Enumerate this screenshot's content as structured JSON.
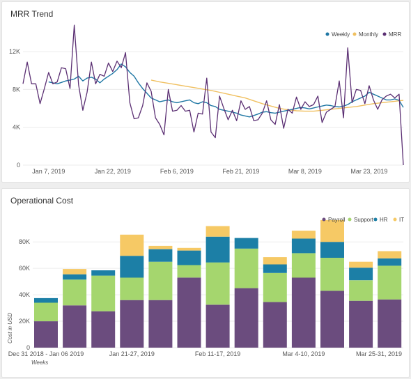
{
  "chart_data": [
    {
      "type": "line",
      "title": "MRR Trend",
      "x_tick_labels": [
        "Jan 7, 2019",
        "Jan 22, 2019",
        "Feb 6, 2019",
        "Feb 21, 2019",
        "Mar 8, 2019",
        "Mar 23, 2019"
      ],
      "y_tick_labels": [
        "0",
        "4K",
        "8K",
        "12K"
      ],
      "ylim": [
        0,
        14000
      ],
      "grid": true,
      "legend_position": "top-right",
      "x_start": "2019-01-01",
      "series": [
        {
          "name": "Weekly",
          "color": "#1f77a4",
          "x": [
            "2019-01-07",
            "2019-01-08",
            "2019-01-09",
            "2019-01-10",
            "2019-01-11",
            "2019-01-12",
            "2019-01-13",
            "2019-01-14",
            "2019-01-15",
            "2019-01-16",
            "2019-01-17",
            "2019-01-18",
            "2019-01-19",
            "2019-01-20",
            "2019-01-21",
            "2019-01-22",
            "2019-01-23",
            "2019-01-24",
            "2019-01-25",
            "2019-01-26",
            "2019-01-27",
            "2019-01-28",
            "2019-01-29",
            "2019-01-30",
            "2019-01-31",
            "2019-02-01",
            "2019-02-02",
            "2019-02-03",
            "2019-02-04",
            "2019-02-05",
            "2019-02-06",
            "2019-02-07",
            "2019-02-08",
            "2019-02-09",
            "2019-02-10",
            "2019-02-11",
            "2019-02-12",
            "2019-02-13",
            "2019-02-14",
            "2019-02-15",
            "2019-02-16",
            "2019-02-17",
            "2019-02-18",
            "2019-02-19",
            "2019-02-20",
            "2019-02-21",
            "2019-02-22",
            "2019-02-23",
            "2019-02-24",
            "2019-02-25",
            "2019-02-26",
            "2019-02-27",
            "2019-02-28",
            "2019-03-01",
            "2019-03-02",
            "2019-03-03",
            "2019-03-04",
            "2019-03-05",
            "2019-03-06",
            "2019-03-07",
            "2019-03-08",
            "2019-03-09",
            "2019-03-10",
            "2019-03-11",
            "2019-03-12",
            "2019-03-13",
            "2019-03-14",
            "2019-03-15",
            "2019-03-16",
            "2019-03-17",
            "2019-03-18",
            "2019-03-19",
            "2019-03-20",
            "2019-03-21",
            "2019-03-22",
            "2019-03-23",
            "2019-03-24",
            "2019-03-25",
            "2019-03-26",
            "2019-03-27",
            "2019-03-28",
            "2019-03-29",
            "2019-03-30",
            "2019-03-31"
          ],
          "values": [
            8800,
            8700,
            8600,
            8750,
            8900,
            9000,
            9100,
            9400,
            8900,
            9200,
            9300,
            9100,
            8700,
            9100,
            9400,
            9700,
            10100,
            10700,
            10400,
            9800,
            9400,
            8700,
            8100,
            7600,
            7100,
            6900,
            6700,
            6800,
            6900,
            6700,
            6600,
            6700,
            6800,
            6900,
            6600,
            6500,
            6700,
            6600,
            6300,
            6200,
            5900,
            5800,
            5700,
            5600,
            5500,
            5300,
            5200,
            5100,
            5250,
            5400,
            5600,
            5650,
            5550,
            5500,
            5600,
            5700,
            5800,
            5900,
            6000,
            6100,
            6050,
            5950,
            6050,
            6150,
            6250,
            6350,
            6300,
            6200,
            6150,
            6250,
            6400,
            6700,
            6900,
            7100,
            7300,
            7700,
            7500,
            7300,
            7100,
            6900,
            6900,
            7000,
            6850,
            6100
          ]
        },
        {
          "name": "Monthly",
          "color": "#f0c060",
          "x": [
            "2019-01-31",
            "2019-02-02",
            "2019-02-04",
            "2019-02-06",
            "2019-02-08",
            "2019-02-10",
            "2019-02-12",
            "2019-02-14",
            "2019-02-16",
            "2019-02-18",
            "2019-02-20",
            "2019-02-22",
            "2019-02-24",
            "2019-02-26",
            "2019-02-28",
            "2019-03-02",
            "2019-03-04",
            "2019-03-06",
            "2019-03-08",
            "2019-03-10",
            "2019-03-12",
            "2019-03-14",
            "2019-03-16",
            "2019-03-18",
            "2019-03-20",
            "2019-03-22",
            "2019-03-24",
            "2019-03-26",
            "2019-03-28",
            "2019-03-30",
            "2019-03-31"
          ],
          "values": [
            9000,
            8800,
            8650,
            8500,
            8350,
            8200,
            8050,
            7900,
            7700,
            7500,
            7300,
            7100,
            6800,
            6500,
            6250,
            6000,
            5850,
            5750,
            5700,
            5700,
            5800,
            5900,
            6000,
            6100,
            6200,
            6350,
            6500,
            6600,
            6700,
            6800,
            6850
          ]
        },
        {
          "name": "MRR",
          "color": "#5b2f73",
          "x": [
            "2019-01-01",
            "2019-01-02",
            "2019-01-03",
            "2019-01-04",
            "2019-01-05",
            "2019-01-06",
            "2019-01-07",
            "2019-01-08",
            "2019-01-09",
            "2019-01-10",
            "2019-01-11",
            "2019-01-12",
            "2019-01-13",
            "2019-01-14",
            "2019-01-15",
            "2019-01-16",
            "2019-01-17",
            "2019-01-18",
            "2019-01-19",
            "2019-01-20",
            "2019-01-21",
            "2019-01-22",
            "2019-01-23",
            "2019-01-24",
            "2019-01-25",
            "2019-01-26",
            "2019-01-27",
            "2019-01-28",
            "2019-01-29",
            "2019-01-30",
            "2019-01-31",
            "2019-02-01",
            "2019-02-02",
            "2019-02-03",
            "2019-02-04",
            "2019-02-05",
            "2019-02-06",
            "2019-02-07",
            "2019-02-08",
            "2019-02-09",
            "2019-02-10",
            "2019-02-11",
            "2019-02-12",
            "2019-02-13",
            "2019-02-14",
            "2019-02-15",
            "2019-02-16",
            "2019-02-17",
            "2019-02-18",
            "2019-02-19",
            "2019-02-20",
            "2019-02-21",
            "2019-02-22",
            "2019-02-23",
            "2019-02-24",
            "2019-02-25",
            "2019-02-26",
            "2019-02-27",
            "2019-02-28",
            "2019-03-01",
            "2019-03-02",
            "2019-03-03",
            "2019-03-04",
            "2019-03-05",
            "2019-03-06",
            "2019-03-07",
            "2019-03-08",
            "2019-03-09",
            "2019-03-10",
            "2019-03-11",
            "2019-03-12",
            "2019-03-13",
            "2019-03-14",
            "2019-03-15",
            "2019-03-16",
            "2019-03-17",
            "2019-03-18",
            "2019-03-19",
            "2019-03-20",
            "2019-03-21",
            "2019-03-22",
            "2019-03-23",
            "2019-03-24",
            "2019-03-25",
            "2019-03-26",
            "2019-03-27",
            "2019-03-28",
            "2019-03-29",
            "2019-03-30",
            "2019-03-31"
          ],
          "values": [
            8600,
            10900,
            8600,
            8600,
            6500,
            8100,
            9800,
            8600,
            8800,
            10300,
            10200,
            8100,
            14800,
            8500,
            5800,
            7700,
            10900,
            8600,
            9600,
            9400,
            10800,
            9900,
            11000,
            10300,
            11900,
            6600,
            4900,
            5000,
            6300,
            8700,
            7800,
            5000,
            4300,
            3200,
            8000,
            5700,
            5800,
            6300,
            5700,
            5800,
            3500,
            5500,
            5400,
            9200,
            3500,
            2900,
            7300,
            6000,
            4800,
            5800,
            4700,
            6800,
            5900,
            6200,
            4700,
            4800,
            5500,
            6800,
            4800,
            4300,
            6400,
            3900,
            5900,
            5500,
            7200,
            5900,
            6700,
            6200,
            6400,
            7300,
            4500,
            5600,
            5900,
            6200,
            8900,
            5000,
            12400,
            6600,
            8000,
            7900,
            6500,
            8400,
            6900,
            5900,
            6900,
            7300,
            7500,
            7100,
            7500,
            0
          ]
        }
      ]
    },
    {
      "type": "bar",
      "stacked": true,
      "title": "Operational Cost",
      "ylabel": "Cost in USD",
      "xlabel": "Weeks",
      "x_tick_labels": [
        "Dec 31 2018 - Jan 06 2019",
        "Jan 21-27, 2019",
        "Feb 11-17, 2019",
        "Mar 4-10, 2019",
        "Mar 25-31, 2019"
      ],
      "y_tick_labels": [
        "0",
        "20K",
        "40K",
        "60K",
        "80K"
      ],
      "ylim": [
        0,
        97000
      ],
      "grid": true,
      "legend_position": "top-right",
      "series": [
        {
          "name": "Payroll",
          "color": "#6b4c7e",
          "values": [
            20000,
            32000,
            27500,
            36000,
            36000,
            53000,
            32500,
            45000,
            34500,
            53000,
            43000,
            35500,
            36500
          ]
        },
        {
          "name": "Support",
          "color": "#a5d66e",
          "values": [
            14000,
            19500,
            27000,
            17000,
            29000,
            9500,
            32000,
            30000,
            22000,
            18500,
            25000,
            15500,
            25500
          ]
        },
        {
          "name": "HR",
          "color": "#1c7fa6",
          "values": [
            3500,
            4000,
            4000,
            16500,
            9500,
            11000,
            19500,
            8000,
            6500,
            11000,
            12000,
            9500,
            5500
          ]
        },
        {
          "name": "IT",
          "color": "#f6c965",
          "values": [
            0,
            4000,
            0,
            16000,
            2500,
            2000,
            8000,
            0,
            5500,
            6000,
            16500,
            4500,
            5500
          ]
        }
      ]
    }
  ]
}
